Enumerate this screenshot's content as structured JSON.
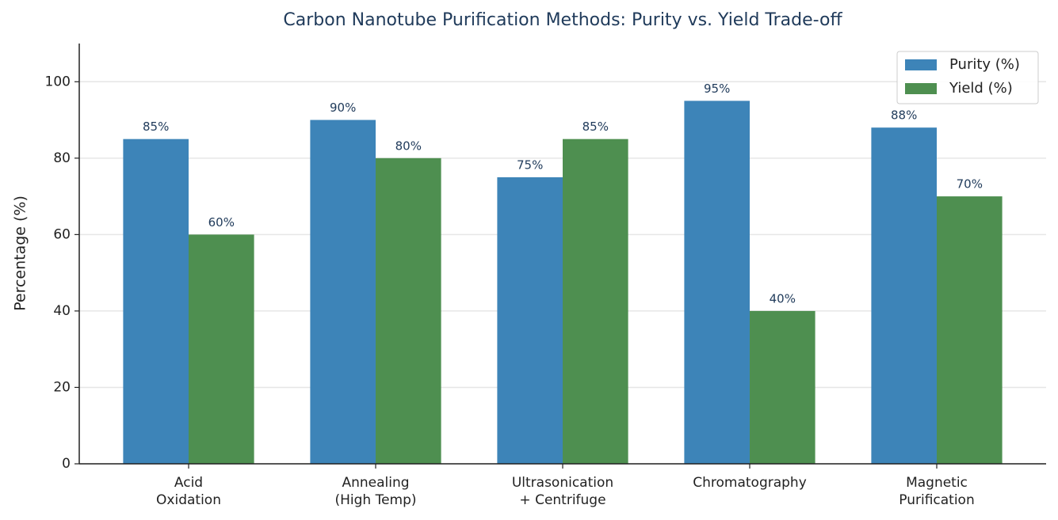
{
  "chart_data": {
    "type": "bar",
    "title": "Carbon Nanotube Purification Methods: Purity vs. Yield Trade-off",
    "y_label": "Percentage (%)",
    "categories": [
      [
        "Acid",
        "Oxidation"
      ],
      [
        "Annealing",
        "(High Temp)"
      ],
      [
        "Ultrasonication",
        "+ Centrifuge"
      ],
      [
        "Chromatography"
      ],
      [
        "Magnetic",
        "Purification"
      ]
    ],
    "series": [
      {
        "name": "Purity (%)",
        "color": "#3d84b8",
        "values": [
          85,
          90,
          75,
          95,
          88
        ],
        "value_labels": [
          "85%",
          "90%",
          "75%",
          "95%",
          "88%"
        ]
      },
      {
        "name": "Yield (%)",
        "color": "#4e8f50",
        "values": [
          60,
          80,
          85,
          40,
          70
        ],
        "value_labels": [
          "60%",
          "80%",
          "85%",
          "40%",
          "70%"
        ]
      }
    ],
    "ylim": [
      0,
      110
    ],
    "yticks": [
      0,
      20,
      40,
      60,
      80,
      100
    ],
    "grid": true,
    "legend": "upper right"
  }
}
